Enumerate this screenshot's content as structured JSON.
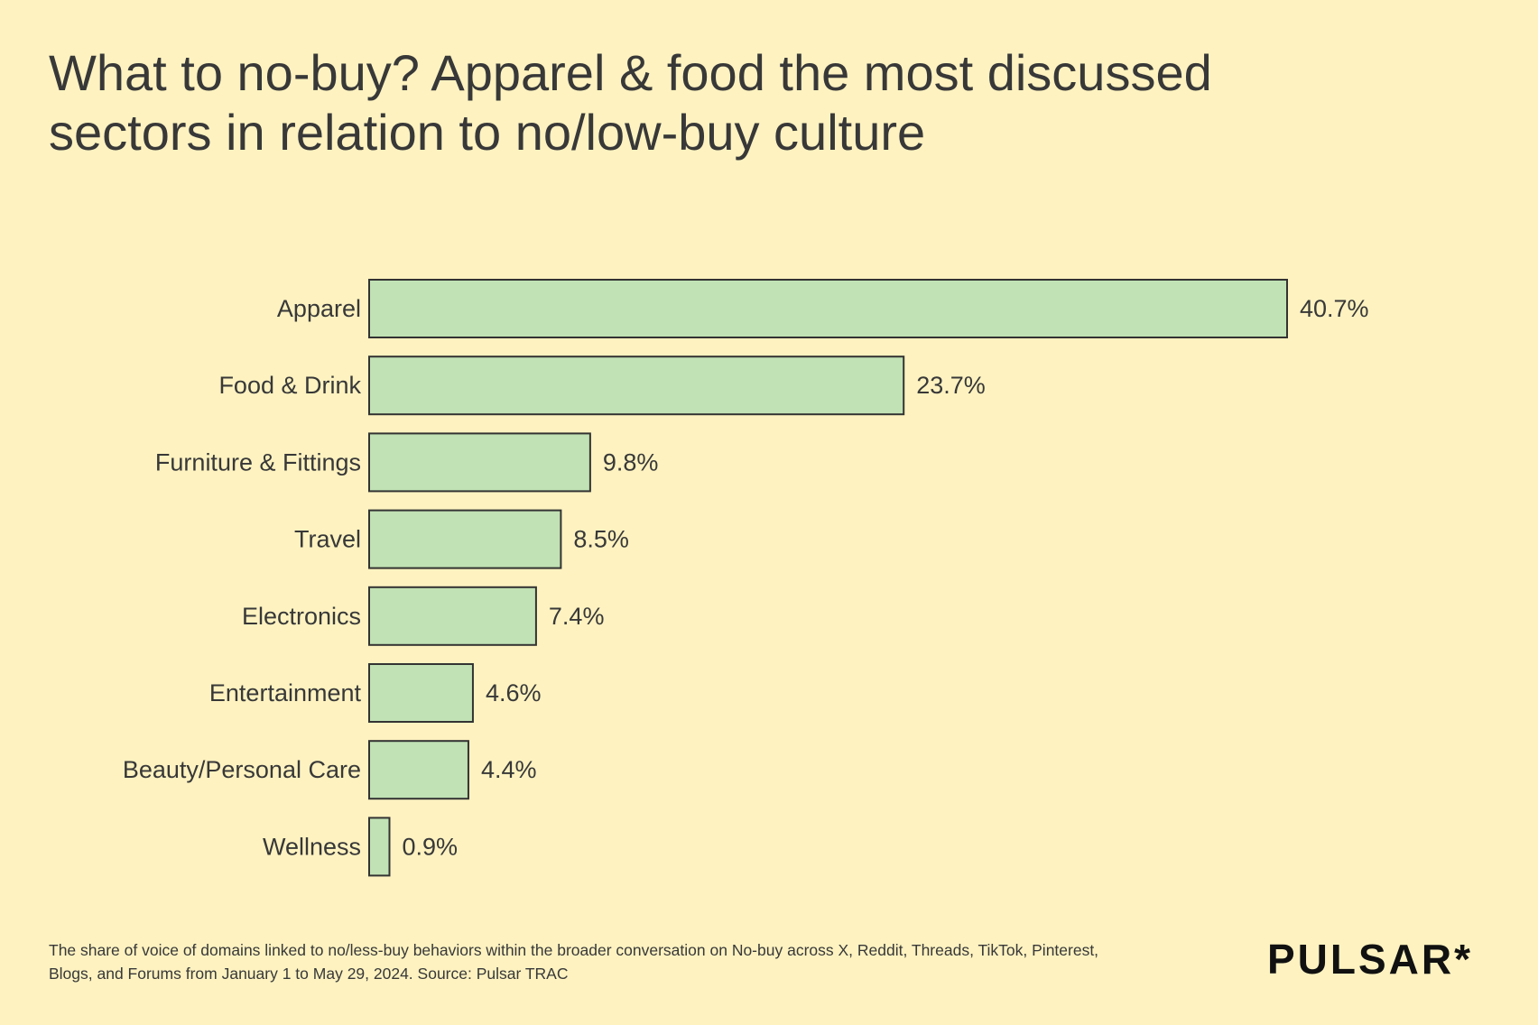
{
  "title_lines": [
    "What to no-buy? Apparel & food the most discussed",
    "sectors in relation to no/low-buy culture"
  ],
  "footnote_lines": [
    "The share of voice of domains linked to no/less-buy behaviors within the broader conversation on No-buy across X, Reddit, Threads, TikTok, Pinterest,",
    "Blogs, and Forums from January 1 to May 29, 2024. Source: Pulsar TRAC"
  ],
  "logo": "PULSAR*",
  "colors": {
    "background": "#fdf2c0",
    "bar_fill": "#c1e2b4",
    "bar_stroke": "#333333",
    "text": "#383838"
  },
  "chart_data": {
    "type": "bar",
    "orientation": "horizontal",
    "categories": [
      "Apparel",
      "Food & Drink",
      "Furniture & Fittings",
      "Travel",
      "Electronics",
      "Entertainment",
      "Beauty/Personal Care",
      "Wellness"
    ],
    "values": [
      40.7,
      23.7,
      9.8,
      8.5,
      7.4,
      4.6,
      4.4,
      0.9
    ],
    "data_labels": [
      "40.7%",
      "23.7%",
      "9.8%",
      "8.5%",
      "7.4%",
      "4.6%",
      "4.4%",
      "0.9%"
    ],
    "unit": "%",
    "xlim": [
      0,
      40.7
    ],
    "grid": false,
    "legend": "none"
  }
}
